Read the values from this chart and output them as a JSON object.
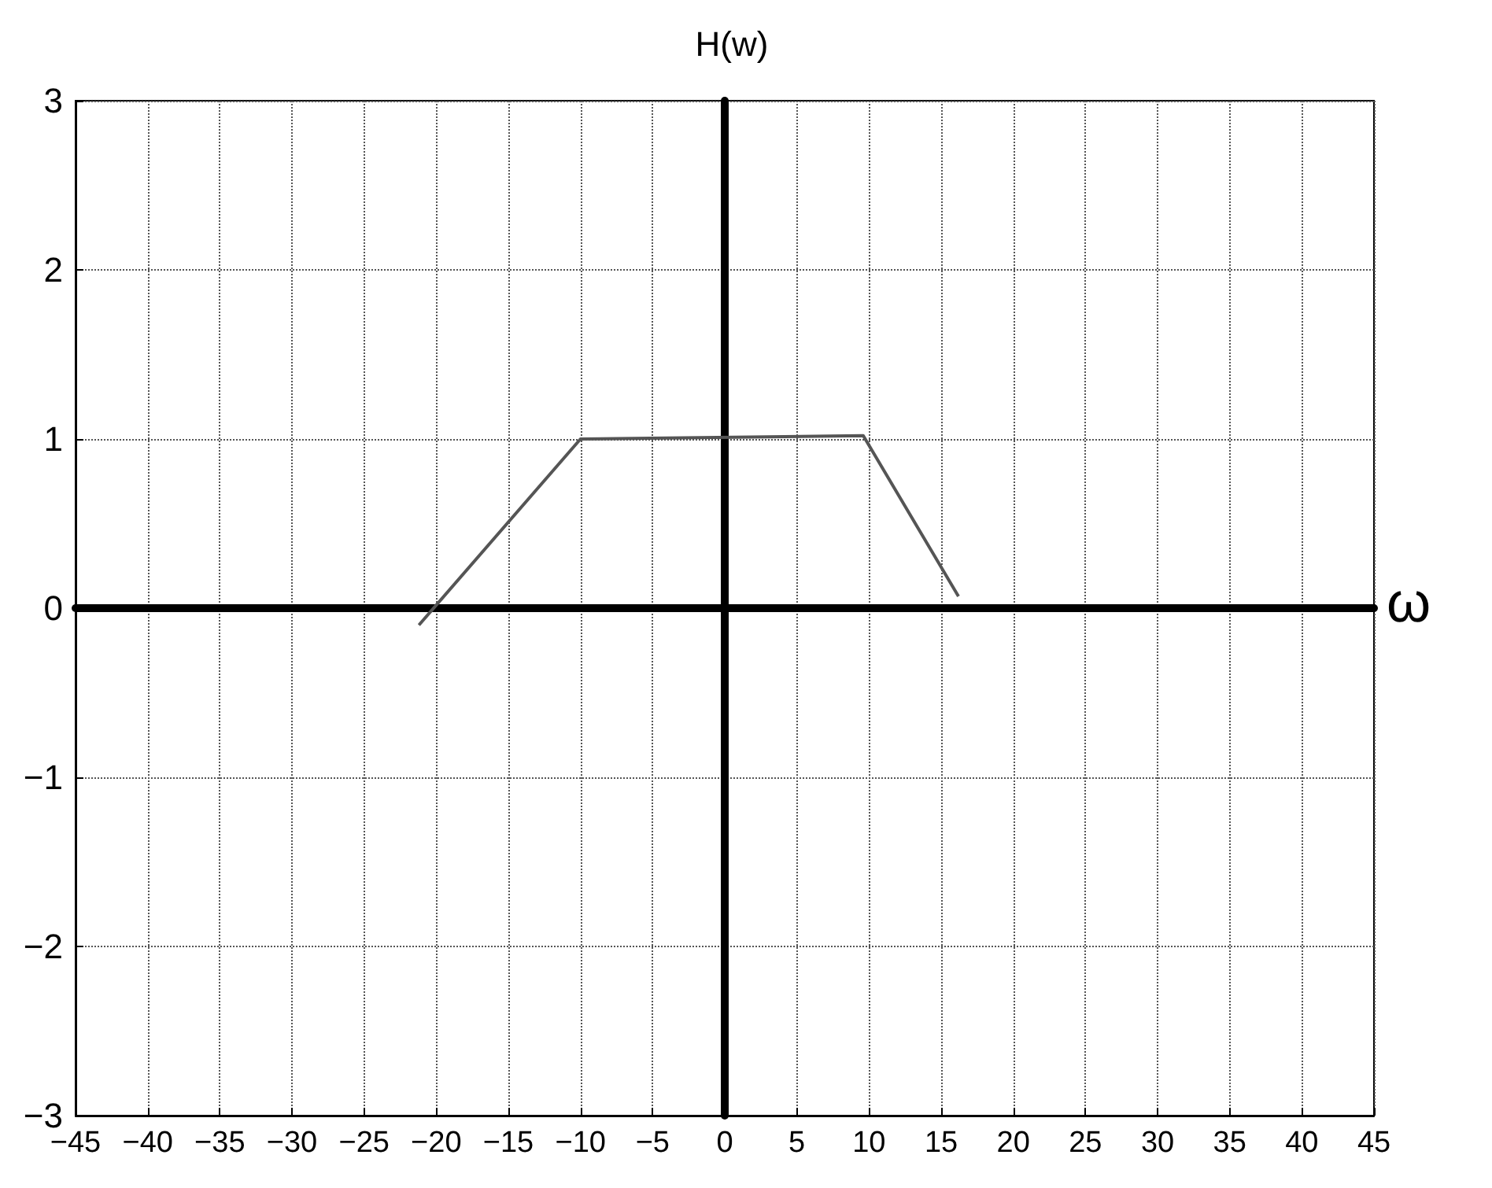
{
  "chart_data": {
    "type": "line",
    "title": "H(w)",
    "xlabel": "ω",
    "series": [
      {
        "x": [
          -21.2,
          -10,
          9.6,
          16.2
        ],
        "values": [
          -0.1,
          1.0,
          1.02,
          0.07
        ],
        "color": "#555555"
      }
    ],
    "xlim": [
      -45,
      45
    ],
    "xticks": [
      -45,
      -40,
      -35,
      -30,
      -25,
      -20,
      -15,
      -10,
      -5,
      0,
      5,
      10,
      15,
      20,
      25,
      30,
      35,
      40,
      45
    ],
    "ylim": [
      -3,
      3
    ],
    "yticks": [
      -3,
      -2,
      -1,
      0,
      1,
      2,
      3
    ],
    "grid": true,
    "marker": "none",
    "line_style": "solid"
  }
}
